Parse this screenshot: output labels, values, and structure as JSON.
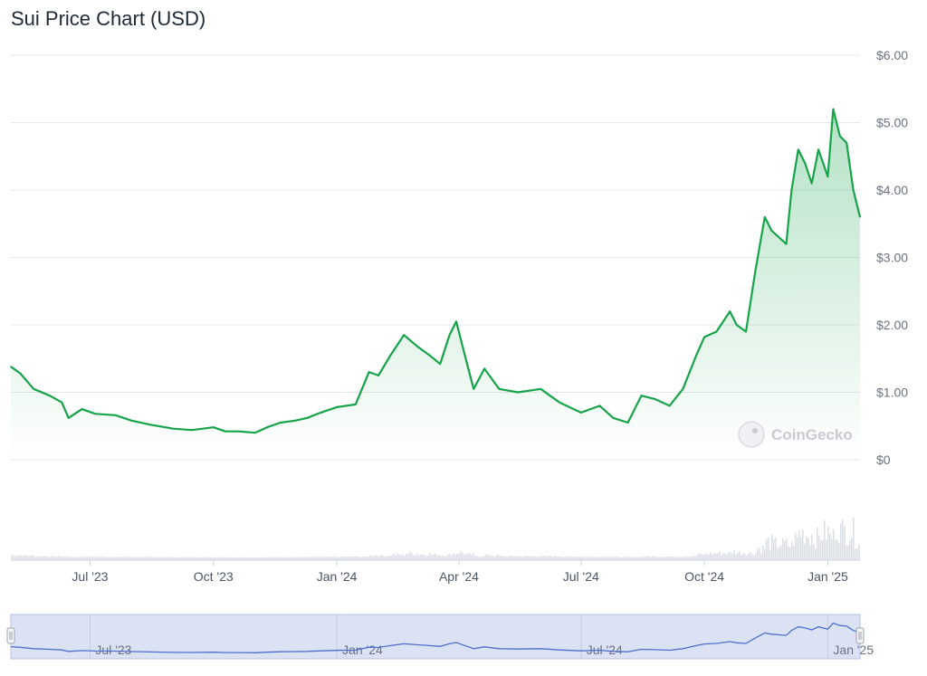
{
  "title": "Sui Price Chart (USD)",
  "watermark": "CoinGecko",
  "chart_data": {
    "type": "area",
    "title": "Sui Price Chart (USD)",
    "xlabel": "",
    "ylabel": "",
    "ylim": [
      0,
      6
    ],
    "y_ticks": [
      "$0",
      "$1.00",
      "$2.00",
      "$3.00",
      "$4.00",
      "$5.00",
      "$6.00"
    ],
    "x_ticks": [
      "Jul '23",
      "Oct '23",
      "Jan '24",
      "Apr '24",
      "Jul '24",
      "Oct '24",
      "Jan '25"
    ],
    "navigator_ticks": [
      "Jul '23",
      "Jan '24",
      "Jul '24",
      "Jan '25"
    ],
    "grid": true,
    "colors": {
      "line": "#16a34a",
      "fill": "#16a34a",
      "volume": "#d1d5db",
      "navigator_line": "#4f6fcf",
      "navigator_bg": "#dbe2f3"
    },
    "series": [
      {
        "x": [
          "2023-05-03",
          "2023-05-10",
          "2023-05-20",
          "2023-06-01",
          "2023-06-10",
          "2023-06-15",
          "2023-06-25",
          "2023-07-05",
          "2023-07-20",
          "2023-08-01",
          "2023-08-15",
          "2023-09-01",
          "2023-09-15",
          "2023-10-01",
          "2023-10-10",
          "2023-10-20",
          "2023-11-01",
          "2023-11-10",
          "2023-11-20",
          "2023-12-01",
          "2023-12-10",
          "2023-12-20",
          "2024-01-01",
          "2024-01-08",
          "2024-01-15",
          "2024-01-25",
          "2024-02-01",
          "2024-02-10",
          "2024-02-20",
          "2024-03-01",
          "2024-03-10",
          "2024-03-18",
          "2024-03-25",
          "2024-03-30",
          "2024-04-05",
          "2024-04-12",
          "2024-04-20",
          "2024-05-01",
          "2024-05-15",
          "2024-06-01",
          "2024-06-15",
          "2024-07-01",
          "2024-07-15",
          "2024-07-25",
          "2024-08-05",
          "2024-08-15",
          "2024-08-25",
          "2024-09-05",
          "2024-09-15",
          "2024-09-25",
          "2024-10-01",
          "2024-10-10",
          "2024-10-20",
          "2024-10-25",
          "2024-11-01",
          "2024-11-08",
          "2024-11-15",
          "2024-11-20",
          "2024-12-01",
          "2024-12-05",
          "2024-12-10",
          "2024-12-15",
          "2024-12-20",
          "2024-12-25",
          "2025-01-01",
          "2025-01-05",
          "2025-01-10",
          "2025-01-15",
          "2025-01-20",
          "2025-01-25"
        ],
        "values": [
          1.38,
          1.28,
          1.05,
          0.95,
          0.85,
          0.62,
          0.75,
          0.68,
          0.66,
          0.58,
          0.52,
          0.46,
          0.44,
          0.48,
          0.42,
          0.42,
          0.4,
          0.48,
          0.55,
          0.58,
          0.62,
          0.7,
          0.78,
          0.8,
          0.82,
          1.3,
          1.25,
          1.55,
          1.85,
          1.68,
          1.55,
          1.42,
          1.85,
          2.05,
          1.58,
          1.05,
          1.35,
          1.05,
          1.0,
          1.05,
          0.85,
          0.7,
          0.8,
          0.62,
          0.55,
          0.95,
          0.9,
          0.8,
          1.05,
          1.55,
          1.82,
          1.9,
          2.2,
          2.0,
          1.9,
          2.8,
          3.6,
          3.4,
          3.2,
          4.0,
          4.6,
          4.4,
          4.1,
          4.6,
          4.2,
          5.2,
          4.8,
          4.7,
          4.0,
          3.6
        ]
      }
    ]
  }
}
